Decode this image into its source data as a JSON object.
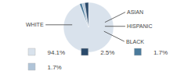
{
  "chart_data": {
    "type": "pie",
    "categories": [
      "WHITE",
      "ASIAN",
      "HISPANIC",
      "BLACK"
    ],
    "values": [
      94.1,
      1.7,
      1.7,
      2.5
    ],
    "value_labels": [
      "94.1%",
      "1.7%",
      "1.7%",
      "2.5%"
    ],
    "colors": [
      "#d9e2ec",
      "#4a7a9b",
      "#b0c4d8",
      "#2a4a6b"
    ],
    "legend": "bottom"
  }
}
